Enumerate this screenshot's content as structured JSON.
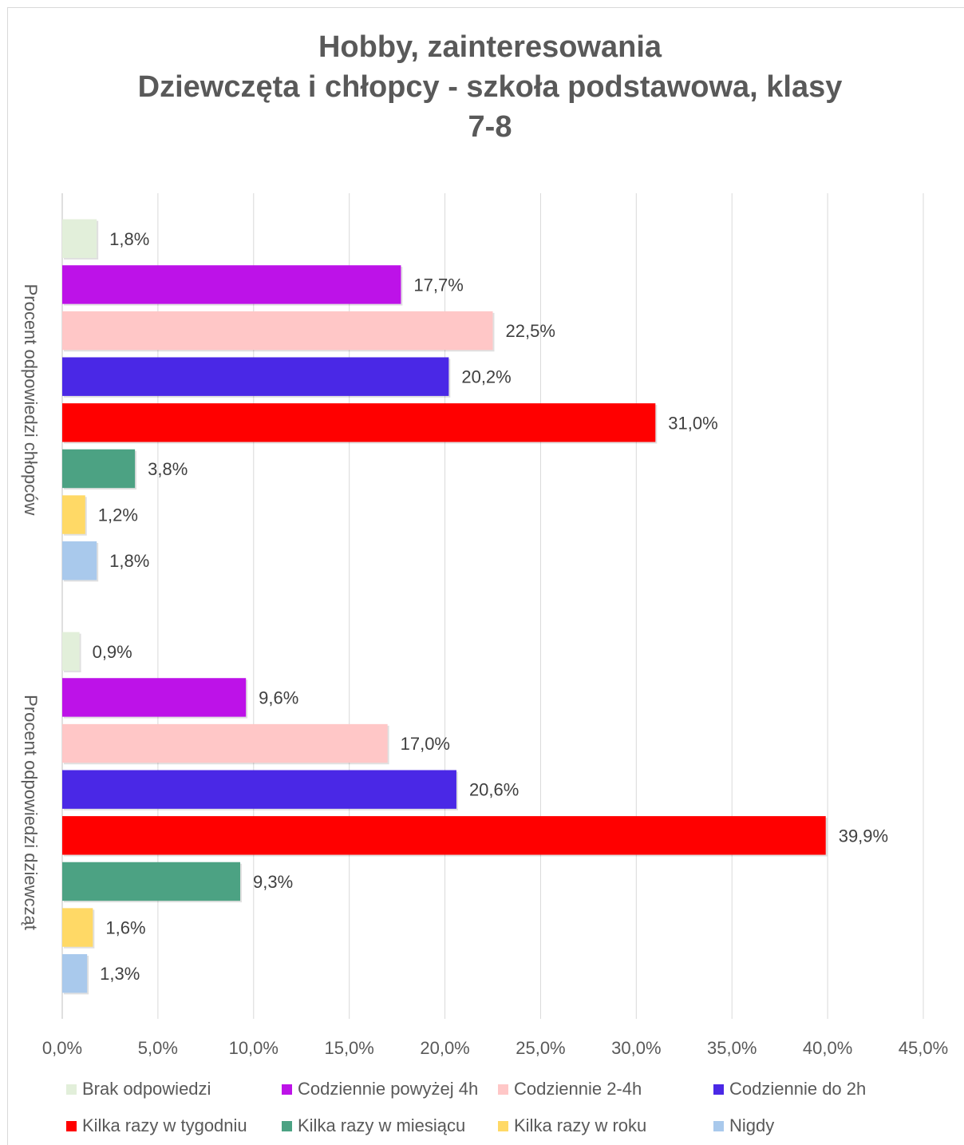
{
  "chart_data": {
    "type": "bar",
    "orientation": "horizontal",
    "title_lines": [
      "Hobby, zainteresowania",
      "Dziewczęta i chłopcy - szkoła podstawowa, klasy",
      "7-8"
    ],
    "groups": [
      {
        "name": "Procent odpowiedzi chłopców",
        "values": [
          1.8,
          17.7,
          22.5,
          20.2,
          31.0,
          3.8,
          1.2,
          1.8
        ],
        "labels": [
          "1,8%",
          "17,7%",
          "22,5%",
          "20,2%",
          "31,0%",
          "3,8%",
          "1,2%",
          "1,8%"
        ]
      },
      {
        "name": "Procent odpowiedzi dziewcząt",
        "values": [
          0.9,
          9.6,
          17.0,
          20.6,
          39.9,
          9.3,
          1.6,
          1.3
        ],
        "labels": [
          "0,9%",
          "9,6%",
          "17,0%",
          "20,6%",
          "39,9%",
          "9,3%",
          "1,6%",
          "1,3%"
        ]
      }
    ],
    "series": [
      {
        "name": "Brak odpowiedzi",
        "color": "#e2efda"
      },
      {
        "name": "Codziennie powyżej 4h",
        "color": "#bd12e8"
      },
      {
        "name": "Codziennie 2-4h",
        "color": "#ffc7c7"
      },
      {
        "name": "Codziennie do 2h",
        "color": "#4a28e6"
      },
      {
        "name": "Kilka razy w tygodniu",
        "color": "#ff0000"
      },
      {
        "name": "Kilka razy w miesiącu",
        "color": "#4ca283"
      },
      {
        "name": "Kilka razy w roku",
        "color": "#ffd966"
      },
      {
        "name": "Nigdy",
        "color": "#a9c9ec"
      }
    ],
    "xlim": [
      0,
      45
    ],
    "x_ticks": [
      0,
      5,
      10,
      15,
      20,
      25,
      30,
      35,
      40,
      45
    ],
    "x_tick_labels": [
      "0,0%",
      "5,0%",
      "10,0%",
      "15,0%",
      "20,0%",
      "25,0%",
      "30,0%",
      "35,0%",
      "40,0%",
      "45,0%"
    ],
    "grid": "vertical",
    "legend_position": "bottom"
  }
}
